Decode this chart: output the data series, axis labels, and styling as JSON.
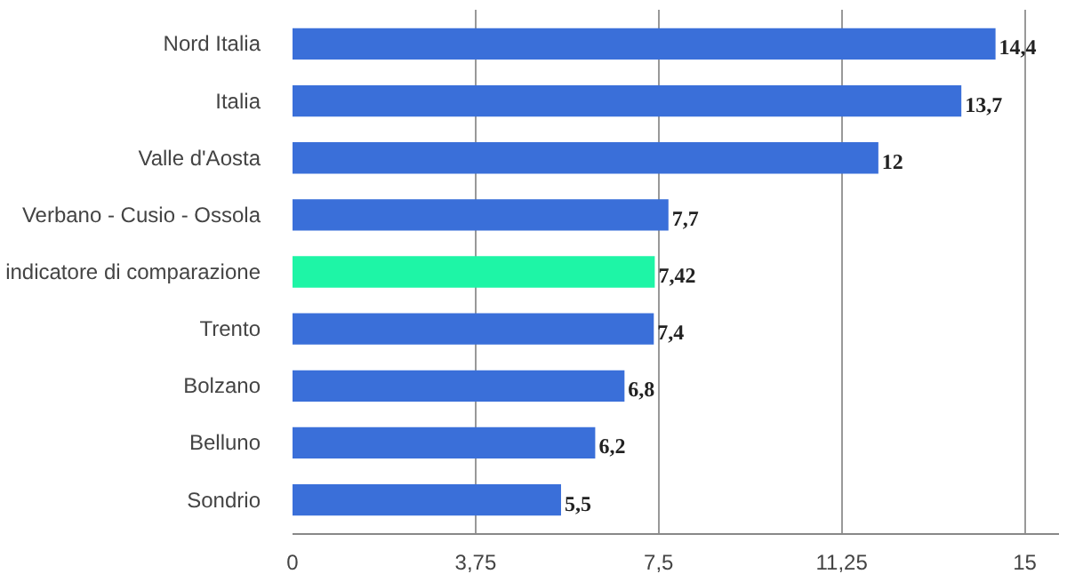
{
  "chart_data": {
    "type": "bar",
    "orientation": "horizontal",
    "categories": [
      "Nord Italia",
      "Italia",
      "Valle d'Aosta",
      "Verbano - Cusio - Ossola",
      "indicatore di comparazione",
      "Trento",
      "Bolzano",
      "Belluno",
      "Sondrio"
    ],
    "values": [
      14.4,
      13.7,
      12,
      7.7,
      7.42,
      7.4,
      6.8,
      6.2,
      5.5
    ],
    "colors": [
      "#3a6fd9",
      "#3a6fd9",
      "#3a6fd9",
      "#3a6fd9",
      "#1ef5a6",
      "#3a6fd9",
      "#3a6fd9",
      "#3a6fd9",
      "#3a6fd9"
    ],
    "value_labels": [
      "14,4",
      "13,7",
      "12",
      "7,7",
      "7,42",
      "7,4",
      "6,8",
      "6,2",
      "5,5"
    ],
    "xlim": [
      0,
      15.7
    ],
    "xticks": [
      0,
      {
        "value": 3.75,
        "label": "3,75"
      },
      {
        "value": 7.5,
        "label": "7,5"
      },
      {
        "value": 11.25,
        "label": "11,25"
      },
      15
    ],
    "grid": "x"
  }
}
